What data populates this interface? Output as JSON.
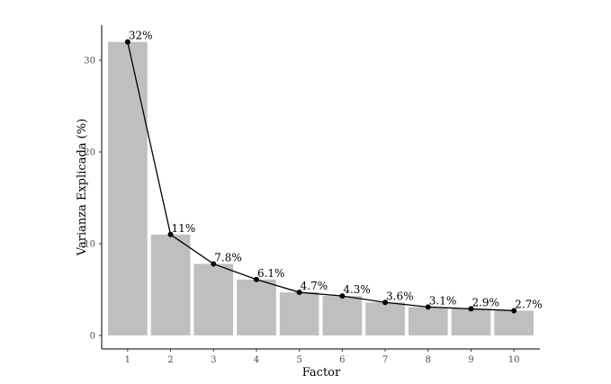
{
  "chart_data": {
    "type": "bar",
    "title": "",
    "xlabel": "Factor",
    "ylabel": "Varianza Explicada (%)",
    "categories": [
      "1",
      "2",
      "3",
      "4",
      "5",
      "6",
      "7",
      "8",
      "9",
      "10"
    ],
    "values": [
      32,
      11,
      7.8,
      6.1,
      4.7,
      4.3,
      3.6,
      3.1,
      2.9,
      2.7
    ],
    "data_labels": [
      "32%",
      "11%",
      "7.8%",
      "6.1%",
      "4.7%",
      "4.3%",
      "3.6%",
      "3.1%",
      "2.9%",
      "2.7%"
    ],
    "overlay_line": true,
    "yticks": [
      0,
      10,
      20,
      30
    ],
    "ytick_labels": [
      "0",
      "10",
      "20",
      "30"
    ],
    "ylim": [
      0,
      33.5
    ],
    "grid": false,
    "bar_color": "#bfbfbf",
    "line_color": "#000000"
  }
}
